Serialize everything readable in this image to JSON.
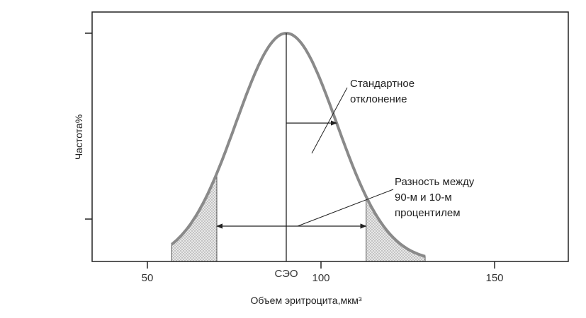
{
  "chart_data": {
    "type": "line",
    "title": "",
    "xlabel": "Объем эритроцита,мкм³",
    "ylabel": "Частота%",
    "xlim": [
      35,
      155
    ],
    "x_ticks": [
      50,
      100,
      150
    ],
    "x_tick_labels": [
      "50",
      "100",
      "150"
    ],
    "grid": false,
    "legend": "none",
    "series": [
      {
        "curve": "gaussian",
        "mean": 90,
        "sd": 14.5,
        "x_start": 57,
        "x_end": 130,
        "peak_relative": 1.0
      }
    ],
    "mean_marker": {
      "x": 90,
      "label": "СЭО"
    },
    "shaded_tails": {
      "lower_below": 70,
      "upper_above": 113
    },
    "annotations": {
      "sd": {
        "label_lines": [
          "Стандартное",
          "отклонение"
        ],
        "from_x": 90,
        "to_x": 104.5
      },
      "range": {
        "label_lines": [
          "Разность между",
          "90-м и 10-м",
          "процентилем"
        ],
        "from_x": 70,
        "to_x": 113
      }
    },
    "colors": {
      "curve": "#8a8a8a",
      "axes": "#222222",
      "tail_fill": "#dcdcdc"
    }
  }
}
